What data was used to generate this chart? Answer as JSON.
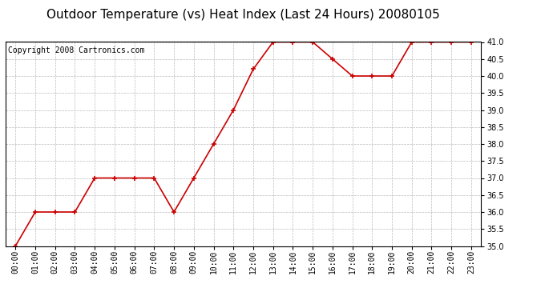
{
  "title": "Outdoor Temperature (vs) Heat Index (Last 24 Hours) 20080105",
  "copyright": "Copyright 2008 Cartronics.com",
  "x_labels": [
    "00:00",
    "01:00",
    "02:00",
    "03:00",
    "04:00",
    "05:00",
    "06:00",
    "07:00",
    "08:00",
    "09:00",
    "10:00",
    "11:00",
    "12:00",
    "13:00",
    "14:00",
    "15:00",
    "16:00",
    "17:00",
    "18:00",
    "19:00",
    "20:00",
    "21:00",
    "22:00",
    "23:00"
  ],
  "y_values": [
    35.0,
    36.0,
    36.0,
    36.0,
    37.0,
    37.0,
    37.0,
    37.0,
    36.0,
    37.0,
    38.0,
    39.0,
    40.2,
    41.0,
    41.0,
    41.0,
    40.5,
    40.0,
    40.0,
    40.0,
    41.0,
    41.0,
    41.0,
    41.0
  ],
  "line_color": "#cc0000",
  "marker": "+",
  "marker_size": 4,
  "marker_edge_width": 1.2,
  "line_width": 1.2,
  "bg_color": "#ffffff",
  "plot_bg_color": "#ffffff",
  "grid_color": "#bbbbbb",
  "ylim": [
    35.0,
    41.0
  ],
  "ytick_interval": 0.5,
  "title_fontsize": 11,
  "axis_fontsize": 7,
  "copyright_fontsize": 7
}
